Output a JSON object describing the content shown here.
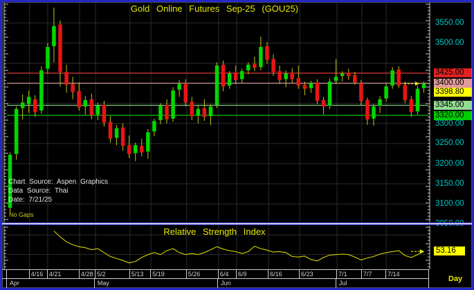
{
  "frame": {
    "border_color": "#2327c8"
  },
  "annotations": {
    "lines": [
      "Chart Source: Aspen Graphics",
      "Data Source: Thai",
      "Date:  7/21/25"
    ],
    "no_gaps": "No Gaps"
  },
  "x_axis": {
    "date_ticks": [
      {
        "label": "4/16",
        "pos": 0.054
      },
      {
        "label": "4/21",
        "pos": 0.097
      },
      {
        "label": "4/28",
        "pos": 0.173
      },
      {
        "label": "5/2",
        "pos": 0.211
      },
      {
        "label": "5/13",
        "pos": 0.293
      },
      {
        "label": "5/19",
        "pos": 0.343
      },
      {
        "label": "5/26",
        "pos": 0.428
      },
      {
        "label": "6/4",
        "pos": 0.504
      },
      {
        "label": "6/9",
        "pos": 0.547
      },
      {
        "label": "6/16",
        "pos": 0.623
      },
      {
        "label": "6/23",
        "pos": 0.697
      },
      {
        "label": "7/1",
        "pos": 0.786
      },
      {
        "label": "7/7",
        "pos": 0.845
      },
      {
        "label": "7/14",
        "pos": 0.903
      }
    ],
    "month_ticks": [
      {
        "label": "Apr",
        "pos": 0.0
      },
      {
        "label": "May",
        "pos": 0.209
      },
      {
        "label": "Jun",
        "pos": 0.5025
      },
      {
        "label": "Jul",
        "pos": 0.784
      }
    ],
    "interval_label": "Day"
  },
  "colors": {
    "up": "#00d800",
    "down": "#e81414",
    "wick": "#c4c41c",
    "grid": "#2c2c2c",
    "axis_text": "#00c8c8",
    "rsi_line": "#d4d400",
    "arrow": "#e8e800",
    "ruler": "#c8c8c8"
  },
  "chart_data": [
    {
      "type": "candlestick",
      "title": "Gold  Online  Futures  Sep-25  (GOU25)",
      "ylim": [
        3054,
        3600
      ],
      "grid_step": 50,
      "last_price": 3398.8,
      "y_ticks": [
        {
          "label": "3550.00",
          "price": 3550,
          "style": "plain"
        },
        {
          "label": "3500.00",
          "price": 3500,
          "style": "plain"
        },
        {
          "label": "3425.00",
          "price": 3425,
          "style": "red"
        },
        {
          "label": "3400.00",
          "price": 3400,
          "style": "pink"
        },
        {
          "label": "3398.80",
          "price": 3398.8,
          "style": "yellow"
        },
        {
          "label": "3345.00",
          "price": 3345,
          "style": "ltgreen"
        },
        {
          "label": "3320.00",
          "price": 3320,
          "style": "green"
        },
        {
          "label": "3300.00",
          "price": 3300,
          "style": "plain"
        },
        {
          "label": "3250.00",
          "price": 3250,
          "style": "plain"
        },
        {
          "label": "3200.00",
          "price": 3200,
          "style": "plain"
        },
        {
          "label": "3150.00",
          "price": 3150,
          "style": "plain"
        },
        {
          "label": "3100.00",
          "price": 3100,
          "style": "plain"
        },
        {
          "label": "3050.00",
          "price": 3050,
          "style": "plain"
        }
      ],
      "level_lines": [
        {
          "price": 3425,
          "color": "#cf3333"
        },
        {
          "price": 3400,
          "color": "#cf9898"
        },
        {
          "price": 3345,
          "color": "#84c884"
        },
        {
          "price": 3320,
          "color": "#00b400"
        }
      ],
      "candles": [
        [
          3090,
          3228,
          3078,
          3222
        ],
        [
          3224,
          3342,
          3210,
          3336
        ],
        [
          3338,
          3372,
          3310,
          3352
        ],
        [
          3348,
          3382,
          3326,
          3366
        ],
        [
          3360,
          3370,
          3316,
          3328
        ],
        [
          3332,
          3442,
          3324,
          3432
        ],
        [
          3436,
          3500,
          3424,
          3490
        ],
        [
          3492,
          3588,
          3452,
          3542
        ],
        [
          3546,
          3556,
          3392,
          3428
        ],
        [
          3428,
          3446,
          3376,
          3396
        ],
        [
          3398,
          3416,
          3360,
          3378
        ],
        [
          3380,
          3402,
          3332,
          3340
        ],
        [
          3342,
          3368,
          3322,
          3358
        ],
        [
          3360,
          3374,
          3310,
          3320
        ],
        [
          3322,
          3352,
          3308,
          3344
        ],
        [
          3346,
          3356,
          3292,
          3302
        ],
        [
          3304,
          3318,
          3252,
          3262
        ],
        [
          3264,
          3296,
          3246,
          3288
        ],
        [
          3290,
          3300,
          3232,
          3244
        ],
        [
          3246,
          3270,
          3214,
          3224
        ],
        [
          3226,
          3252,
          3206,
          3246
        ],
        [
          3244,
          3262,
          3218,
          3228
        ],
        [
          3230,
          3286,
          3212,
          3278
        ],
        [
          3280,
          3312,
          3268,
          3306
        ],
        [
          3308,
          3350,
          3298,
          3344
        ],
        [
          3346,
          3360,
          3300,
          3310
        ],
        [
          3312,
          3390,
          3304,
          3382
        ],
        [
          3384,
          3408,
          3366,
          3398
        ],
        [
          3400,
          3410,
          3342,
          3352
        ],
        [
          3354,
          3366,
          3308,
          3318
        ],
        [
          3320,
          3344,
          3300,
          3336
        ],
        [
          3338,
          3360,
          3306,
          3316
        ],
        [
          3318,
          3348,
          3296,
          3342
        ],
        [
          3346,
          3452,
          3338,
          3444
        ],
        [
          3446,
          3456,
          3380,
          3392
        ],
        [
          3394,
          3430,
          3386,
          3424
        ],
        [
          3426,
          3444,
          3398,
          3408
        ],
        [
          3410,
          3436,
          3400,
          3430
        ],
        [
          3432,
          3452,
          3422,
          3446
        ],
        [
          3448,
          3466,
          3430,
          3438
        ],
        [
          3440,
          3516,
          3432,
          3490
        ],
        [
          3492,
          3502,
          3448,
          3458
        ],
        [
          3460,
          3472,
          3418,
          3428
        ],
        [
          3430,
          3444,
          3398,
          3408
        ],
        [
          3410,
          3432,
          3390,
          3424
        ],
        [
          3426,
          3438,
          3400,
          3410
        ],
        [
          3412,
          3444,
          3386,
          3394
        ],
        [
          3396,
          3404,
          3370,
          3386
        ],
        [
          3388,
          3406,
          3376,
          3400
        ],
        [
          3402,
          3410,
          3348,
          3356
        ],
        [
          3358,
          3366,
          3322,
          3342
        ],
        [
          3344,
          3412,
          3336,
          3404
        ],
        [
          3406,
          3460,
          3398,
          3416
        ],
        [
          3418,
          3430,
          3404,
          3424
        ],
        [
          3426,
          3436,
          3408,
          3418
        ],
        [
          3420,
          3428,
          3396,
          3402
        ],
        [
          3400,
          3408,
          3346,
          3356
        ],
        [
          3358,
          3364,
          3296,
          3310
        ],
        [
          3312,
          3348,
          3294,
          3342
        ],
        [
          3344,
          3368,
          3326,
          3360
        ],
        [
          3362,
          3400,
          3354,
          3392
        ],
        [
          3394,
          3440,
          3386,
          3432
        ],
        [
          3434,
          3442,
          3388,
          3394
        ],
        [
          3396,
          3404,
          3350,
          3358
        ],
        [
          3360,
          3368,
          3316,
          3328
        ],
        [
          3330,
          3394,
          3322,
          3386
        ],
        [
          3388,
          3404,
          3376,
          3398.8
        ]
      ]
    },
    {
      "type": "line",
      "title": "Relative  Strength  Index",
      "ylim": [
        35,
        80
      ],
      "value_label": "53.16",
      "last_value": 53.16,
      "start_index": 7,
      "values": [
        74,
        68,
        63,
        60,
        58,
        57,
        55,
        56,
        52,
        48,
        46,
        44,
        41.5,
        43,
        47,
        50,
        52,
        50,
        54,
        56,
        52,
        50,
        51,
        50,
        52,
        55,
        58,
        55.5,
        54,
        53,
        51,
        53,
        58.5,
        56,
        54.5,
        52.5,
        53,
        52,
        48,
        47.5,
        48.5,
        45,
        43.5,
        47,
        49.5,
        50,
        50.5,
        50,
        47.5,
        44.5,
        46.5,
        48,
        50.5,
        52,
        53,
        54,
        49,
        47,
        50,
        53.16
      ]
    }
  ]
}
